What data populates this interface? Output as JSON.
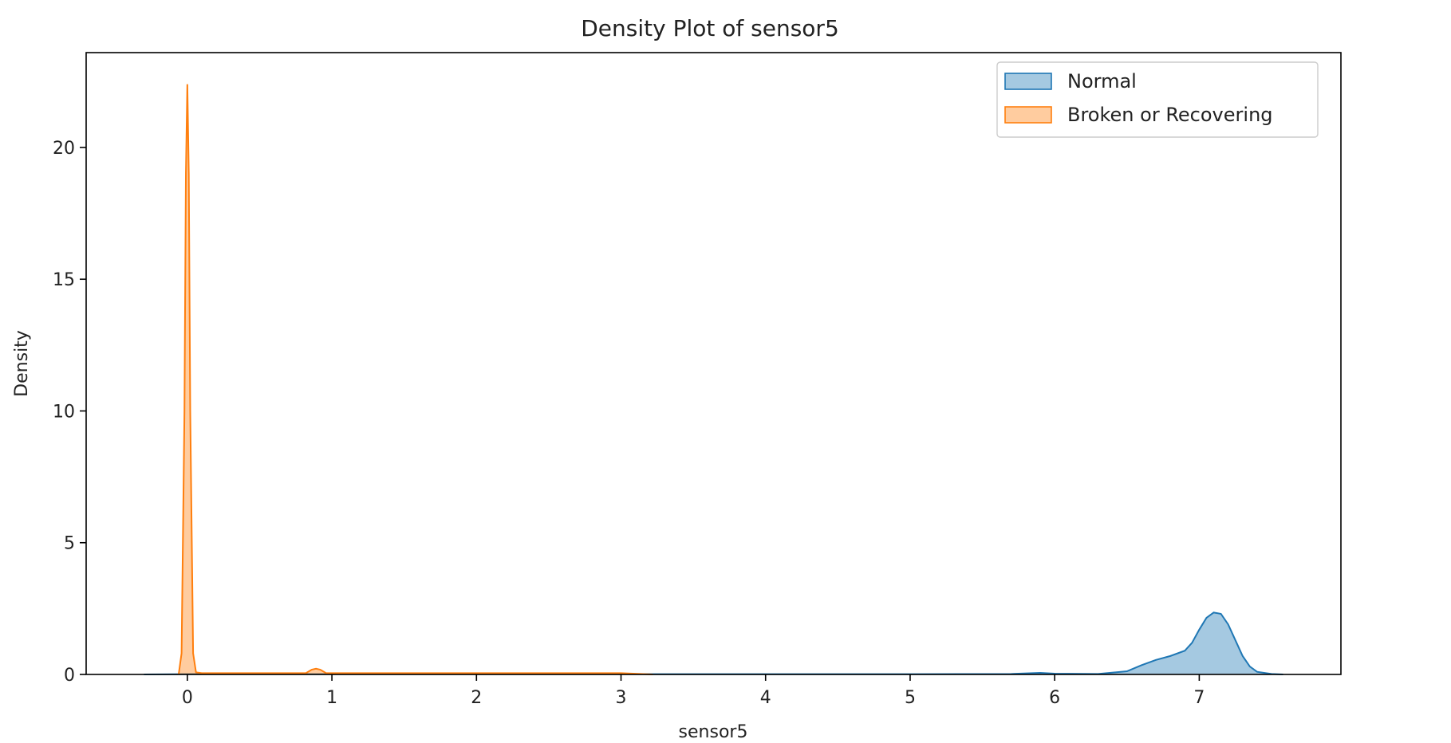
{
  "chart_data": {
    "type": "area",
    "title": "Density Plot of sensor5",
    "xlabel": "sensor5",
    "ylabel": "Density",
    "xlim": [
      -0.7,
      7.98
    ],
    "ylim": [
      0,
      23.6
    ],
    "xticks": [
      0,
      1,
      2,
      3,
      4,
      5,
      6,
      7
    ],
    "yticks": [
      0,
      5,
      10,
      15,
      20
    ],
    "grid": false,
    "legend_position": "top-right",
    "series": [
      {
        "name": "Normal",
        "color": "#1f77b4",
        "x": [
          -0.3,
          0.0,
          1.0,
          2.0,
          3.0,
          4.0,
          5.0,
          5.7,
          5.9,
          6.0,
          6.3,
          6.5,
          6.6,
          6.7,
          6.8,
          6.9,
          6.95,
          7.0,
          7.05,
          7.1,
          7.15,
          7.2,
          7.25,
          7.3,
          7.35,
          7.4,
          7.5,
          7.58
        ],
        "y": [
          0,
          0.01,
          0.01,
          0.01,
          0.01,
          0.01,
          0.01,
          0.02,
          0.06,
          0.03,
          0.02,
          0.12,
          0.35,
          0.55,
          0.7,
          0.9,
          1.2,
          1.7,
          2.15,
          2.35,
          2.3,
          1.9,
          1.3,
          0.7,
          0.3,
          0.1,
          0.02,
          0
        ]
      },
      {
        "name": "Broken or Recovering",
        "color": "#ff7f0e",
        "x": [
          -0.06,
          -0.04,
          -0.02,
          -0.01,
          0.0,
          0.01,
          0.02,
          0.04,
          0.06,
          0.1,
          0.5,
          0.82,
          0.86,
          0.89,
          0.92,
          0.96,
          1.0,
          2.0,
          3.0,
          3.22
        ],
        "y": [
          0,
          0.8,
          10.0,
          19.0,
          22.4,
          19.0,
          10.0,
          0.8,
          0.08,
          0.05,
          0.05,
          0.05,
          0.18,
          0.22,
          0.18,
          0.05,
          0.05,
          0.05,
          0.05,
          0
        ]
      }
    ]
  }
}
